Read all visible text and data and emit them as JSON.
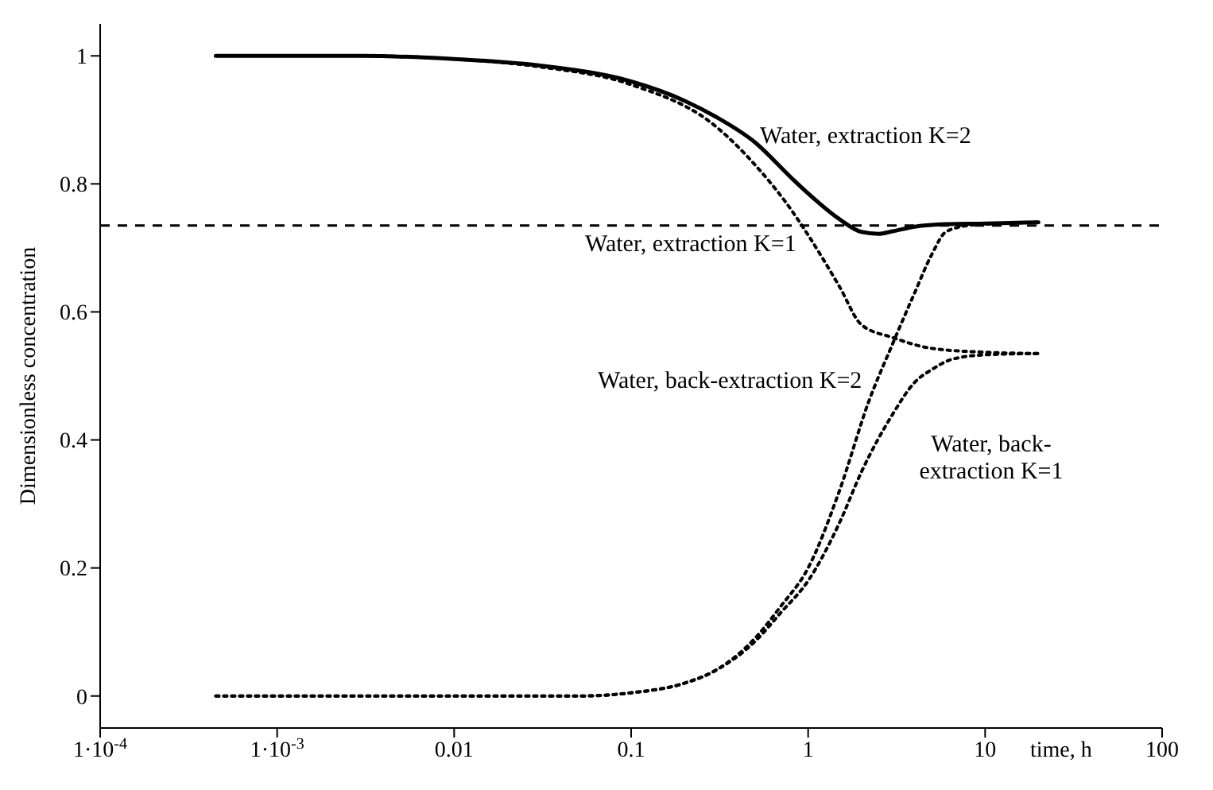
{
  "chart_data": {
    "type": "line",
    "ylabel": "Dimensionless concentration",
    "xlabel": "time, h",
    "log": "x",
    "xlim": [
      0.0001,
      100
    ],
    "ylim": [
      -0.05,
      1.05
    ],
    "xticks": [
      {
        "value": 0.0001,
        "label": "1·10$^{-4}$"
      },
      {
        "value": 0.001,
        "label": "1·10$^{-3}$"
      },
      0.01,
      0.1,
      1,
      10,
      100
    ],
    "yticks": [
      0,
      0.2,
      0.4,
      0.6,
      0.8,
      1
    ],
    "marker": "none",
    "ref_lines": [
      {
        "axis": "y",
        "value": 0.735,
        "line_style": "dashed",
        "color": "#000000"
      }
    ],
    "series": [
      {
        "name": "Water, extraction K=2",
        "color": "#000000",
        "line_style": "solid",
        "x": [
          0.00045,
          0.003,
          0.01,
          0.03,
          0.1,
          0.2,
          0.3,
          0.5,
          0.8,
          1,
          1.5,
          2,
          2.5,
          3,
          4,
          6,
          10,
          20
        ],
        "values": [
          1,
          1,
          0.995,
          0.985,
          0.96,
          0.93,
          0.905,
          0.865,
          0.81,
          0.785,
          0.745,
          0.725,
          0.722,
          0.726,
          0.733,
          0.737,
          0.738,
          0.74
        ]
      },
      {
        "name": "Water, extraction K=1",
        "color": "#000000",
        "line_style": "dotted",
        "x": [
          0.00045,
          0.003,
          0.01,
          0.03,
          0.1,
          0.3,
          0.5,
          0.8,
          1,
          1.5,
          2,
          3,
          5,
          10,
          20
        ],
        "values": [
          1,
          1,
          0.995,
          0.983,
          0.955,
          0.89,
          0.83,
          0.76,
          0.72,
          0.64,
          0.58,
          0.56,
          0.543,
          0.537,
          0.535
        ]
      },
      {
        "name": "Water, back-extraction K=2",
        "color": "#000000",
        "line_style": "dotted",
        "x": [
          0.00045,
          0.01,
          0.05,
          0.1,
          0.2,
          0.3,
          0.5,
          0.7,
          1,
          1.5,
          2.2,
          3,
          4,
          5,
          6,
          8,
          10,
          20
        ],
        "values": [
          0,
          0,
          0,
          0.005,
          0.02,
          0.04,
          0.09,
          0.14,
          0.2,
          0.32,
          0.46,
          0.55,
          0.63,
          0.69,
          0.725,
          0.735,
          0.737,
          0.74
        ]
      },
      {
        "name": "Water, back-extraction K=1",
        "color": "#000000",
        "line_style": "dotted",
        "x": [
          0.00045,
          0.01,
          0.05,
          0.1,
          0.2,
          0.3,
          0.5,
          0.7,
          1,
          1.5,
          2,
          3,
          4,
          5,
          6.5,
          10,
          20
        ],
        "values": [
          0,
          0,
          0,
          0.005,
          0.02,
          0.04,
          0.085,
          0.13,
          0.18,
          0.27,
          0.35,
          0.44,
          0.49,
          0.51,
          0.526,
          0.533,
          0.535
        ]
      }
    ]
  }
}
